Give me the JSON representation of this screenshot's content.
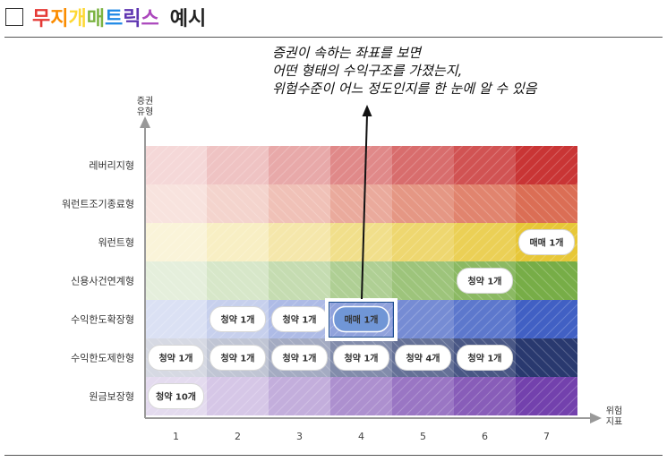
{
  "header": {
    "title_chars": [
      {
        "ch": "무",
        "color": "#e53935"
      },
      {
        "ch": "지",
        "color": "#fb8c00"
      },
      {
        "ch": "개",
        "color": "#fdd835"
      },
      {
        "ch": "매",
        "color": "#7cb342"
      },
      {
        "ch": "트",
        "color": "#1e88e5"
      },
      {
        "ch": "릭",
        "color": "#5e35b1"
      },
      {
        "ch": "스",
        "color": "#ab47bc"
      }
    ],
    "title_suffix": "예시"
  },
  "annotation": {
    "lines": [
      "증권이 속하는 좌표를 보면",
      "어떤 형태의 수익구조를 가졌는지,",
      "위험수준이 어느 정도인지를 한 눈에 알 수 있음"
    ]
  },
  "axes": {
    "y_label": [
      "증권",
      "유형"
    ],
    "x_label": [
      "위험",
      "지표"
    ]
  },
  "rows": [
    {
      "label": "레버리지형",
      "base": "#c62828"
    },
    {
      "label": "워런트조기종료형",
      "base": "#d9654a"
    },
    {
      "label": "워런트형",
      "base": "#e6c42c"
    },
    {
      "label": "신용사건연계형",
      "base": "#6ea83c"
    },
    {
      "label": "수익한도확장형",
      "base": "#3556c0"
    },
    {
      "label": "수익한도제한형",
      "base": "#1c2d66"
    },
    {
      "label": "원금보장형",
      "base": "#6a35a8"
    }
  ],
  "columns": [
    "1",
    "2",
    "3",
    "4",
    "5",
    "6",
    "7"
  ],
  "pills": [
    {
      "row": 2,
      "col": 7,
      "text": "매매 1개",
      "highlight": false
    },
    {
      "row": 3,
      "col": 6,
      "text": "청약 1개",
      "highlight": false
    },
    {
      "row": 4,
      "col": 2,
      "text": "청약 1개",
      "highlight": false
    },
    {
      "row": 4,
      "col": 3,
      "text": "청약 1개",
      "highlight": false
    },
    {
      "row": 4,
      "col": 4,
      "text": "매매 1개",
      "highlight": true
    },
    {
      "row": 5,
      "col": 1,
      "text": "청약 1개",
      "highlight": false
    },
    {
      "row": 5,
      "col": 2,
      "text": "청약 1개",
      "highlight": false
    },
    {
      "row": 5,
      "col": 3,
      "text": "청약 1개",
      "highlight": false
    },
    {
      "row": 5,
      "col": 4,
      "text": "청약 1개",
      "highlight": false
    },
    {
      "row": 5,
      "col": 5,
      "text": "청약 4개",
      "highlight": false
    },
    {
      "row": 5,
      "col": 6,
      "text": "청약 1개",
      "highlight": false
    },
    {
      "row": 6,
      "col": 1,
      "text": "청약 10개",
      "highlight": false
    }
  ],
  "colors": {
    "axis": "#999999",
    "highlight_border": "#1f4f8f",
    "highlight_fill": "#7096d6"
  }
}
